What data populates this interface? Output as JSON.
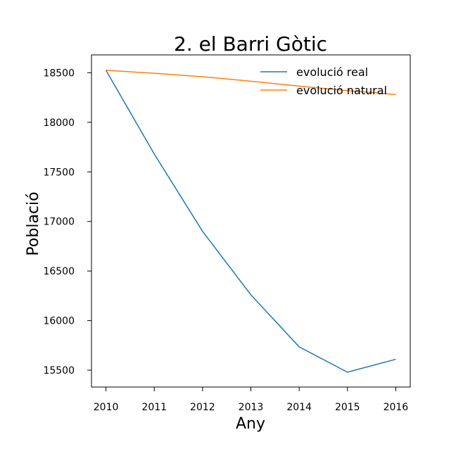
{
  "chart_data": {
    "type": "line",
    "title": "2. el Barri Gòtic",
    "xlabel": "Any",
    "ylabel": "Població",
    "x": [
      2010,
      2011,
      2012,
      2013,
      2014,
      2015,
      2016
    ],
    "x_ticks": [
      "2010",
      "2011",
      "2012",
      "2013",
      "2014",
      "2015",
      "2016"
    ],
    "y_ticks": [
      "15500",
      "16000",
      "16500",
      "17000",
      "17500",
      "18000",
      "18500"
    ],
    "y_tick_values": [
      15500,
      16000,
      16500,
      17000,
      17500,
      18000,
      18500
    ],
    "xlim": [
      2009.7,
      2016.3
    ],
    "ylim": [
      15330,
      18680
    ],
    "grid": false,
    "legend_position": "top-right",
    "series": [
      {
        "name": "evolució real",
        "color": "#1f77b4",
        "values": [
          18525,
          17680,
          16900,
          16260,
          15735,
          15480,
          15610
        ]
      },
      {
        "name": "evolució natural",
        "color": "#ff7f0e",
        "values": [
          18525,
          18495,
          18460,
          18415,
          18365,
          18320,
          18280
        ]
      }
    ]
  }
}
